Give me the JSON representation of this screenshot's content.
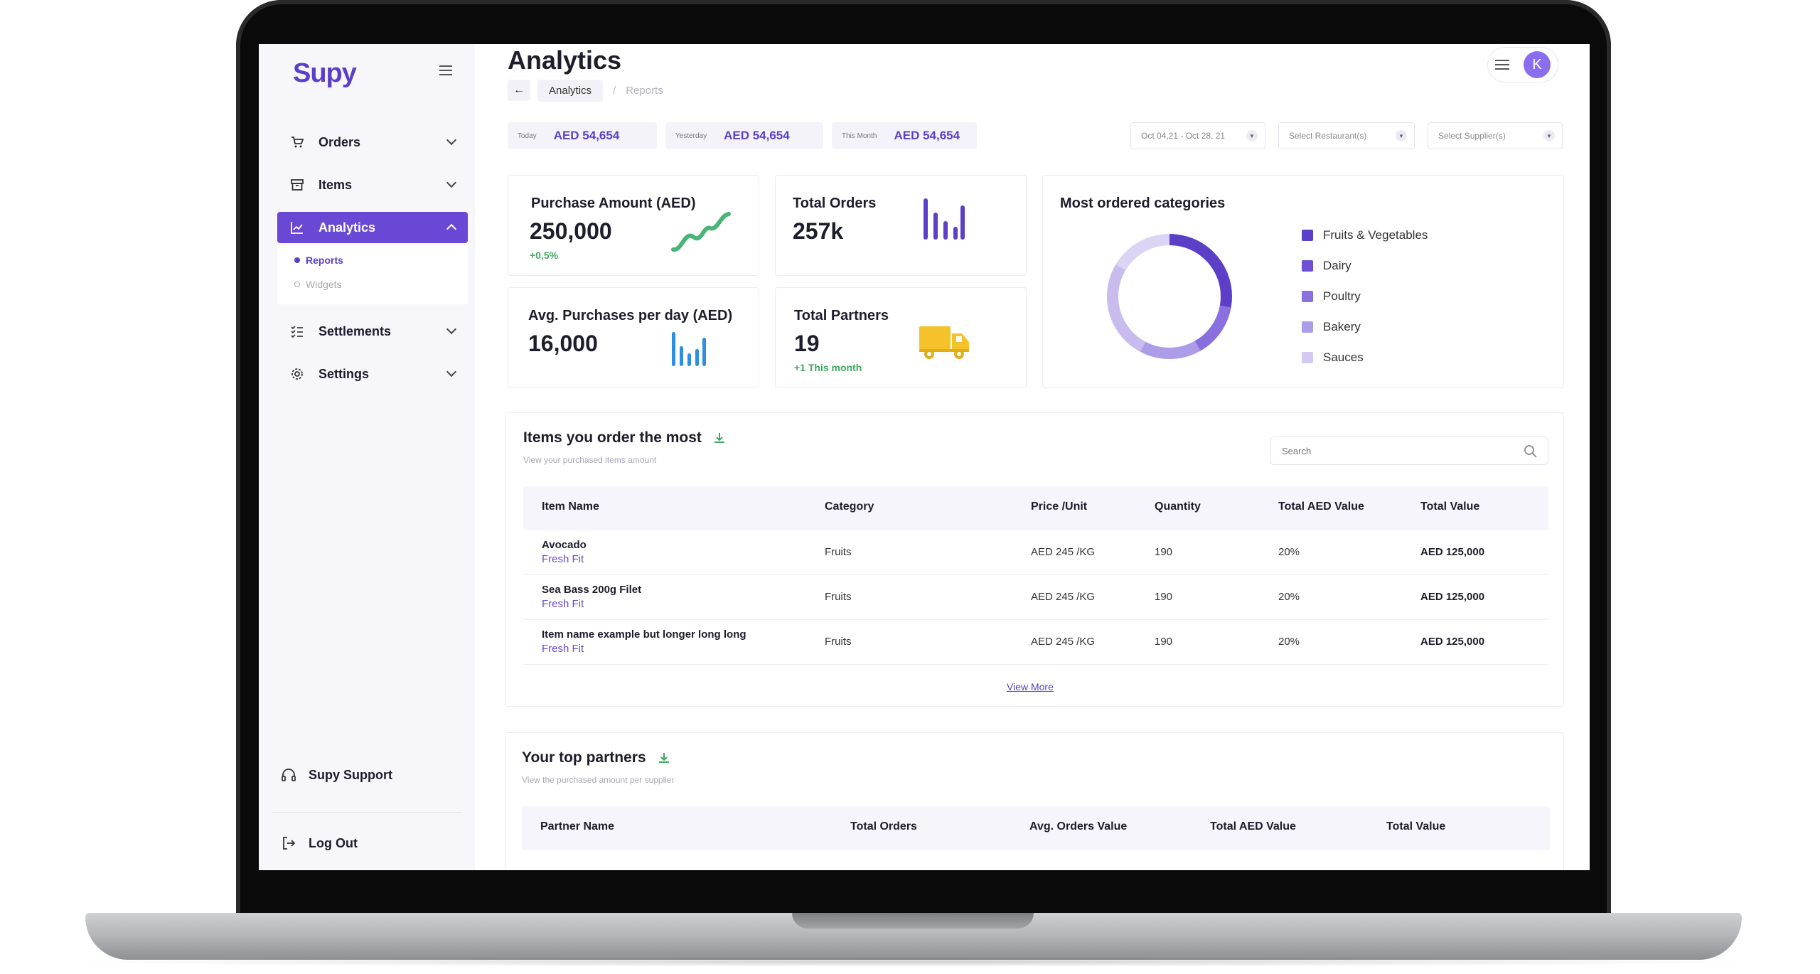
{
  "sidebar": {
    "logo": "Supy",
    "nav": [
      {
        "label": "Orders"
      },
      {
        "label": "Items"
      },
      {
        "label": "Analytics"
      },
      {
        "label": "Settlements"
      },
      {
        "label": "Settings"
      }
    ],
    "subnav": [
      {
        "label": "Reports"
      },
      {
        "label": "Widgets"
      }
    ],
    "support_label": "Supy Support",
    "logout_label": "Log Out"
  },
  "header": {
    "title": "Analytics",
    "breadcrumb": {
      "active": "Analytics",
      "separator": "/",
      "current": "Reports"
    },
    "avatar_initial": "K"
  },
  "stats": [
    {
      "label": "Today",
      "value": "AED 54,654"
    },
    {
      "label": "Yesterday",
      "value": "AED 54,654"
    },
    {
      "label": "This Month",
      "value": "AED 54,654"
    }
  ],
  "filters": {
    "date_range": "Oct 04,21 - Oct 28, 21",
    "restaurant": "Select Restaurant(s)",
    "supplier": "Select Supplier(s)"
  },
  "cards": {
    "purchase": {
      "title": "Purchase Amount (AED)",
      "value": "250,000",
      "change": "+0,5%"
    },
    "orders": {
      "title": "Total Orders",
      "value": "257k"
    },
    "avg": {
      "title": "Avg. Purchases per day (AED)",
      "value": "16,000"
    },
    "partners": {
      "title": "Total Partners",
      "value": "19",
      "change": "+1 This month"
    }
  },
  "categories": {
    "title": "Most ordered categories",
    "items": [
      {
        "label": "Fruits & Vegetables",
        "color": "#5b3fc7"
      },
      {
        "label": "Dairy",
        "color": "#6d50d4"
      },
      {
        "label": "Poultry",
        "color": "#8a70de"
      },
      {
        "label": "Bakery",
        "color": "#ad9ce8"
      },
      {
        "label": "Sauces",
        "color": "#d3c9f2"
      }
    ]
  },
  "items_table": {
    "title": "Items you order the most",
    "subtitle": "View your purchased items amount",
    "search_placeholder": "Search",
    "headers": [
      "Item Name",
      "Category",
      "Price /Unit",
      "Quantity",
      "Total AED Value",
      "Total Value"
    ],
    "rows": [
      {
        "name": "Avocado",
        "supplier": "Fresh Fit",
        "category": "Fruits",
        "price": "AED 245 /KG",
        "quantity": "190",
        "share": "20%",
        "total": "AED 125,000"
      },
      {
        "name": "Sea Bass 200g Filet",
        "supplier": "Fresh Fit",
        "category": "Fruits",
        "price": "AED 245 /KG",
        "quantity": "190",
        "share": "20%",
        "total": "AED 125,000"
      },
      {
        "name": "Item name example but longer long long",
        "supplier": "Fresh Fit",
        "category": "Fruits",
        "price": "AED 245 /KG",
        "quantity": "190",
        "share": "20%",
        "total": "AED 125,000"
      }
    ],
    "view_more": "View More"
  },
  "partners_table": {
    "title": "Your top partners",
    "subtitle": "View the purchased amount per supplier",
    "headers": [
      "Partner Name",
      "Total Orders",
      "Avg. Orders Value",
      "Total AED Value",
      "Total Value"
    ]
  },
  "colors": {
    "brand": "#5b3fc7",
    "accent": "#6a48d6",
    "positive": "#3ea860",
    "truck": "#f4c22b",
    "chart_blue": "#2f8de4"
  }
}
